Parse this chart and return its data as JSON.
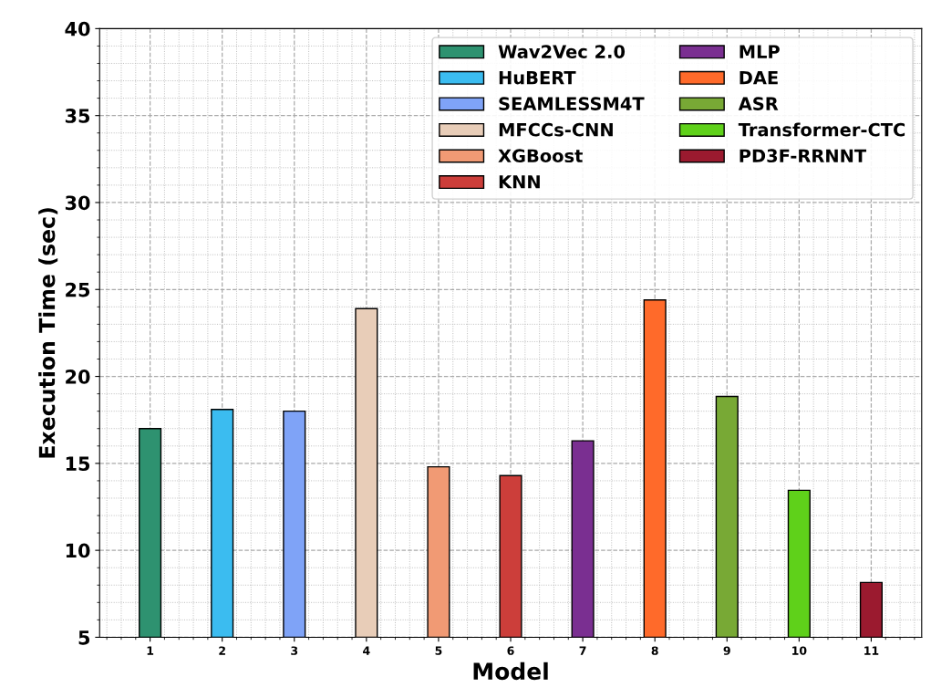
{
  "chart_data": {
    "type": "bar",
    "xlabel": "Model",
    "ylabel": "Execution Time (sec)",
    "categories": [
      "1",
      "2",
      "3",
      "4",
      "5",
      "6",
      "7",
      "8",
      "9",
      "10",
      "11"
    ],
    "series": [
      {
        "name": "Wav2Vec 2.0",
        "color": "#2e9270",
        "values": [
          17.0,
          null,
          null,
          null,
          null,
          null,
          null,
          null,
          null,
          null,
          null
        ]
      },
      {
        "name": "HuBERT",
        "color": "#3bbcf0",
        "values": [
          null,
          18.1,
          null,
          null,
          null,
          null,
          null,
          null,
          null,
          null,
          null
        ]
      },
      {
        "name": "SEAMLESSM4T",
        "color": "#7fa3f7",
        "values": [
          null,
          null,
          18.0,
          null,
          null,
          null,
          null,
          null,
          null,
          null,
          null
        ]
      },
      {
        "name": "MFCCs-CNN",
        "color": "#e8cdb8",
        "values": [
          null,
          null,
          null,
          23.9,
          null,
          null,
          null,
          null,
          null,
          null,
          null
        ]
      },
      {
        "name": "XGBoost",
        "color": "#f19a74",
        "values": [
          null,
          null,
          null,
          null,
          14.8,
          null,
          null,
          null,
          null,
          null,
          null
        ]
      },
      {
        "name": "KNN",
        "color": "#cc3e3a",
        "values": [
          null,
          null,
          null,
          null,
          null,
          14.3,
          null,
          null,
          null,
          null,
          null
        ]
      },
      {
        "name": "MLP",
        "color": "#7a2f91",
        "values": [
          null,
          null,
          null,
          null,
          null,
          null,
          16.3,
          null,
          null,
          null,
          null
        ]
      },
      {
        "name": "DAE",
        "color": "#ff6a2a",
        "values": [
          null,
          null,
          null,
          null,
          null,
          null,
          null,
          24.4,
          null,
          null,
          null
        ]
      },
      {
        "name": "ASR",
        "color": "#78a935",
        "values": [
          null,
          null,
          null,
          null,
          null,
          null,
          null,
          null,
          18.85,
          null,
          null
        ]
      },
      {
        "name": "Transformer-CTC",
        "color": "#5fd11a",
        "values": [
          null,
          null,
          null,
          null,
          null,
          null,
          null,
          null,
          null,
          13.45,
          null
        ]
      },
      {
        "name": "PD3F-RRNNT",
        "color": "#9b1a2f",
        "values": [
          null,
          null,
          null,
          null,
          null,
          null,
          null,
          null,
          null,
          null,
          8.15
        ]
      }
    ],
    "ylim": [
      5,
      40
    ],
    "yticks": [
      5,
      10,
      15,
      20,
      25,
      30,
      35,
      40
    ],
    "grid": true,
    "legend": "top right"
  }
}
